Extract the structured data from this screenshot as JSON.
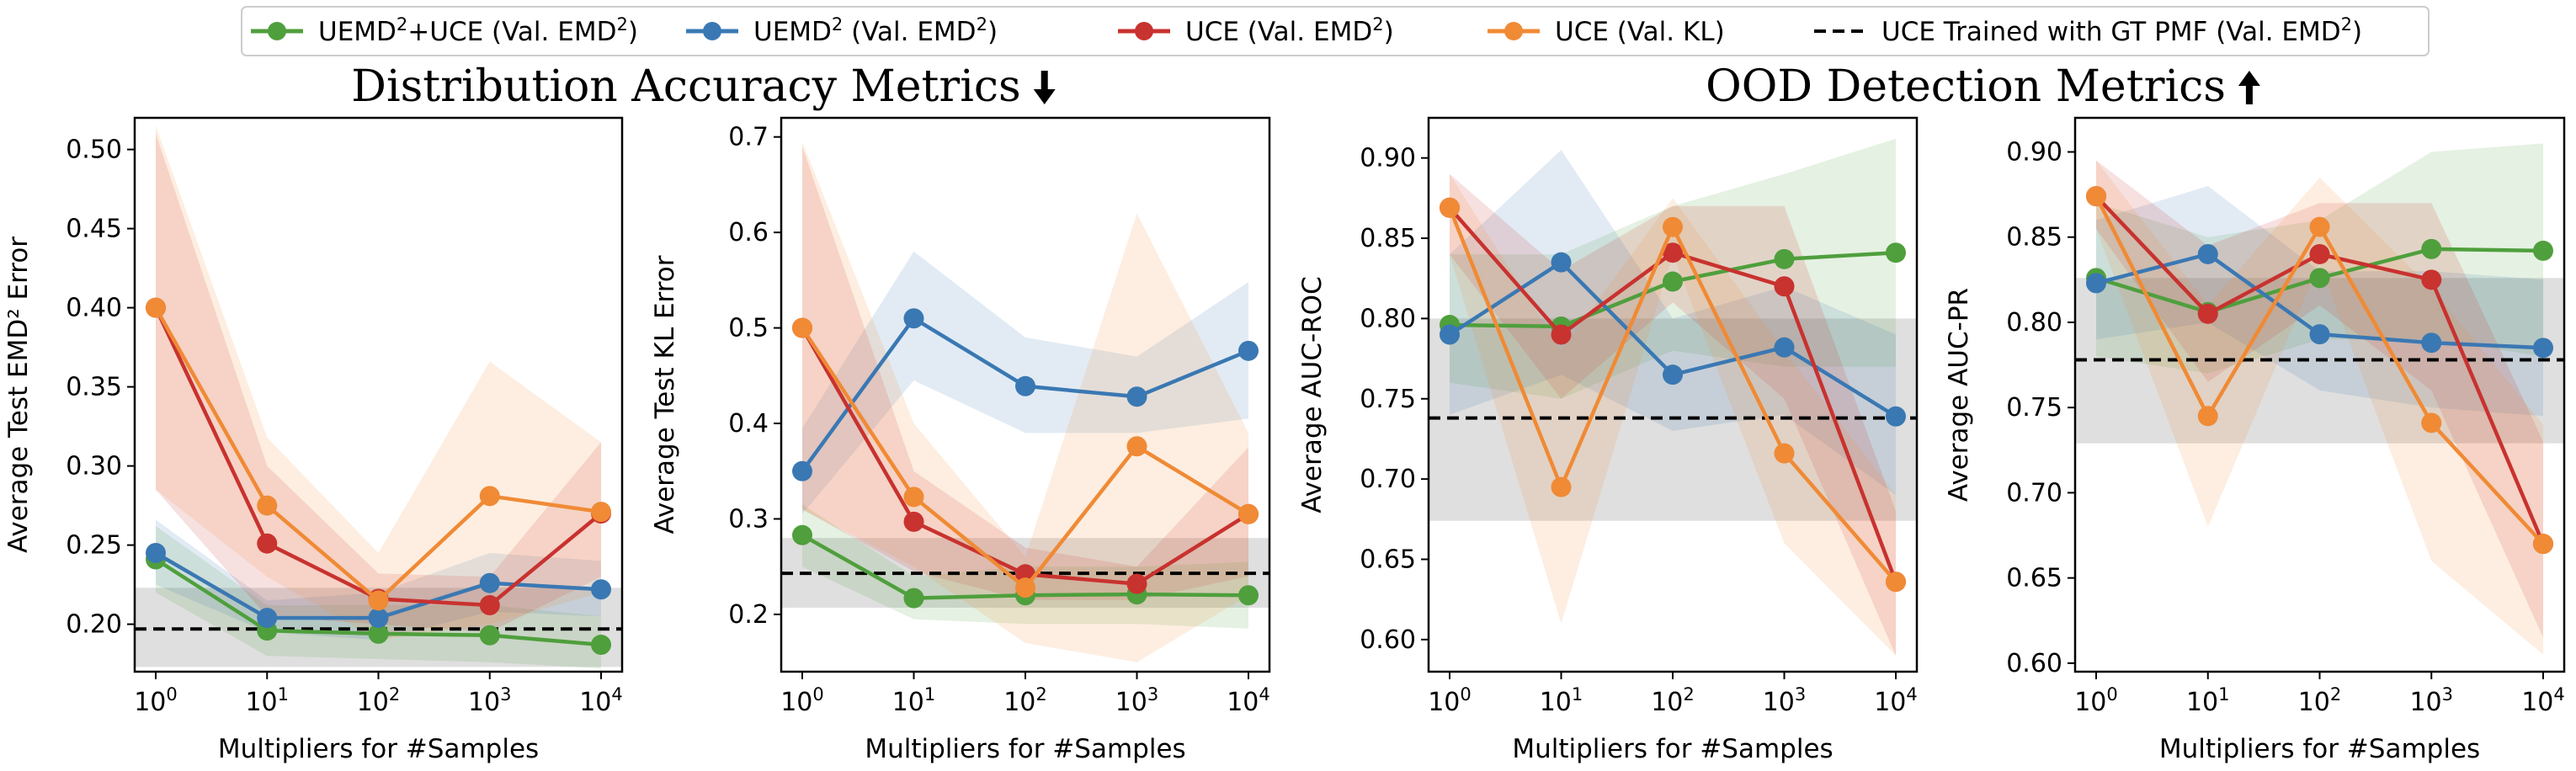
{
  "colors": {
    "green": "#4f9f3d",
    "blue": "#3a78b3",
    "red": "#c8322f",
    "orange": "#f08a35",
    "reference": "#000000",
    "reference_band": "#9b9b9b"
  },
  "legend": [
    {
      "id": "uemd_uce",
      "base": "UEMD",
      "sup": "2",
      "mid": "+UCE (Val. EMD",
      "sup2": "2",
      "tail": ")",
      "color": "#4f9f3d",
      "style": "marker"
    },
    {
      "id": "uemd",
      "base": "UEMD",
      "sup": "2",
      "mid": " (Val. EMD",
      "sup2": "2",
      "tail": ")",
      "color": "#3a78b3",
      "style": "marker"
    },
    {
      "id": "uce_emd",
      "base": "UCE (Val. EMD",
      "sup": "2",
      "mid": ")",
      "sup2": "",
      "tail": "",
      "color": "#c8322f",
      "style": "marker"
    },
    {
      "id": "uce_kl",
      "base": "UCE (Val. KL)",
      "sup": "",
      "mid": "",
      "sup2": "",
      "tail": "",
      "color": "#f08a35",
      "style": "marker"
    },
    {
      "id": "gt_pmf",
      "base": "UCE Trained with GT PMF (Val. EMD",
      "sup": "2",
      "mid": ")",
      "sup2": "",
      "tail": "",
      "color": "#000000",
      "style": "dashed"
    }
  ],
  "group_titles": [
    {
      "text": "Distribution Accuracy Metrics",
      "arrow": "down"
    },
    {
      "text": "OOD Detection Metrics",
      "arrow": "up"
    }
  ],
  "chart_data": [
    {
      "type": "line",
      "xscale": "log",
      "x": [
        1,
        10,
        100,
        1000,
        10000
      ],
      "xtick_labels": [
        {
          "base": "10",
          "exp": "0"
        },
        {
          "base": "10",
          "exp": "1"
        },
        {
          "base": "10",
          "exp": "2"
        },
        {
          "base": "10",
          "exp": "3"
        },
        {
          "base": "10",
          "exp": "4"
        }
      ],
      "xlabel": "Multipliers for #Samples",
      "ylabel": "Average Test EMD² Error",
      "ylim": [
        0.17,
        0.52
      ],
      "yticks": [
        "0.20",
        "0.25",
        "0.30",
        "0.35",
        "0.40",
        "0.45",
        "0.50"
      ],
      "ytick_values": [
        0.2,
        0.25,
        0.3,
        0.35,
        0.4,
        0.45,
        0.5
      ],
      "series": [
        {
          "name": "UEMD²+UCE (Val. EMD²)",
          "color": "#4f9f3d",
          "values": [
            0.241,
            0.196,
            0.194,
            0.193,
            0.187
          ],
          "lower": [
            0.22,
            0.18,
            0.178,
            0.176,
            0.172
          ],
          "upper": [
            0.262,
            0.212,
            0.212,
            0.212,
            0.205
          ]
        },
        {
          "name": "UEMD² (Val. EMD²)",
          "color": "#3a78b3",
          "values": [
            0.245,
            0.204,
            0.204,
            0.226,
            0.222
          ],
          "lower": [
            0.225,
            0.195,
            0.19,
            0.208,
            0.205
          ],
          "upper": [
            0.266,
            0.215,
            0.22,
            0.245,
            0.24
          ]
        },
        {
          "name": "UCE (Val. EMD²)",
          "color": "#c8322f",
          "values": [
            0.4,
            0.251,
            0.216,
            0.212,
            0.27
          ],
          "lower": [
            0.285,
            0.205,
            0.2,
            0.195,
            0.23
          ],
          "upper": [
            0.51,
            0.3,
            0.232,
            0.23,
            0.315
          ]
        },
        {
          "name": "UCE (Val. KL)",
          "color": "#f08a35",
          "values": [
            0.4,
            0.275,
            0.215,
            0.281,
            0.271
          ],
          "lower": [
            0.285,
            0.23,
            0.19,
            0.2,
            0.22
          ],
          "upper": [
            0.515,
            0.318,
            0.245,
            0.366,
            0.315
          ]
        }
      ],
      "reference": {
        "name": "UCE Trained with GT PMF (Val. EMD²)",
        "value": 0.197,
        "lower": 0.173,
        "upper": 0.223
      }
    },
    {
      "type": "line",
      "xscale": "log",
      "x": [
        1,
        10,
        100,
        1000,
        10000
      ],
      "xtick_labels": [
        {
          "base": "10",
          "exp": "0"
        },
        {
          "base": "10",
          "exp": "1"
        },
        {
          "base": "10",
          "exp": "2"
        },
        {
          "base": "10",
          "exp": "3"
        },
        {
          "base": "10",
          "exp": "4"
        }
      ],
      "xlabel": "Multipliers for #Samples",
      "ylabel": "Average Test KL Error",
      "ylim": [
        0.14,
        0.72
      ],
      "yticks": [
        "0.2",
        "0.3",
        "0.4",
        "0.5",
        "0.6",
        "0.7"
      ],
      "ytick_values": [
        0.2,
        0.3,
        0.4,
        0.5,
        0.6,
        0.7
      ],
      "series": [
        {
          "name": "UEMD²+UCE (Val. EMD²)",
          "color": "#4f9f3d",
          "values": [
            0.283,
            0.217,
            0.22,
            0.221,
            0.22
          ],
          "lower": [
            0.25,
            0.195,
            0.19,
            0.19,
            0.185
          ],
          "upper": [
            0.315,
            0.24,
            0.25,
            0.25,
            0.255
          ]
        },
        {
          "name": "UEMD² (Val. EMD²)",
          "color": "#3a78b3",
          "values": [
            0.35,
            0.51,
            0.439,
            0.428,
            0.476
          ],
          "lower": [
            0.305,
            0.445,
            0.39,
            0.39,
            0.405
          ],
          "upper": [
            0.395,
            0.58,
            0.49,
            0.47,
            0.548
          ]
        },
        {
          "name": "UCE (Val. EMD²)",
          "color": "#c8322f",
          "values": [
            0.5,
            0.297,
            0.242,
            0.232,
            0.305
          ],
          "lower": [
            0.31,
            0.245,
            0.215,
            0.215,
            0.24
          ],
          "upper": [
            0.69,
            0.35,
            0.27,
            0.25,
            0.375
          ]
        },
        {
          "name": "UCE (Val. KL)",
          "color": "#f08a35",
          "values": [
            0.5,
            0.323,
            0.228,
            0.376,
            0.305
          ],
          "lower": [
            0.31,
            0.25,
            0.17,
            0.15,
            0.22
          ],
          "upper": [
            0.695,
            0.4,
            0.26,
            0.62,
            0.39
          ]
        }
      ],
      "reference": {
        "name": "UCE Trained with GT PMF (Val. EMD²)",
        "value": 0.243,
        "lower": 0.207,
        "upper": 0.28
      }
    },
    {
      "type": "line",
      "xscale": "log",
      "x": [
        1,
        10,
        100,
        1000,
        10000
      ],
      "xtick_labels": [
        {
          "base": "10",
          "exp": "0"
        },
        {
          "base": "10",
          "exp": "1"
        },
        {
          "base": "10",
          "exp": "2"
        },
        {
          "base": "10",
          "exp": "3"
        },
        {
          "base": "10",
          "exp": "4"
        }
      ],
      "xlabel": "Multipliers for #Samples",
      "ylabel": "Average AUC-ROC",
      "ylim": [
        0.58,
        0.925
      ],
      "yticks": [
        "0.60",
        "0.65",
        "0.70",
        "0.75",
        "0.80",
        "0.85",
        "0.90"
      ],
      "ytick_values": [
        0.6,
        0.65,
        0.7,
        0.75,
        0.8,
        0.85,
        0.9
      ],
      "series": [
        {
          "name": "UEMD²+UCE (Val. EMD²)",
          "color": "#4f9f3d",
          "values": [
            0.796,
            0.795,
            0.823,
            0.837,
            0.841
          ],
          "lower": [
            0.76,
            0.75,
            0.78,
            0.77,
            0.77
          ],
          "upper": [
            0.84,
            0.84,
            0.87,
            0.89,
            0.912
          ]
        },
        {
          "name": "UEMD² (Val. EMD²)",
          "color": "#3a78b3",
          "values": [
            0.79,
            0.835,
            0.765,
            0.782,
            0.739
          ],
          "lower": [
            0.74,
            0.765,
            0.73,
            0.74,
            0.69
          ],
          "upper": [
            0.84,
            0.905,
            0.8,
            0.82,
            0.79
          ]
        },
        {
          "name": "UCE (Val. EMD²)",
          "color": "#c8322f",
          "values": [
            0.869,
            0.79,
            0.841,
            0.82,
            0.636
          ],
          "lower": [
            0.84,
            0.75,
            0.81,
            0.75,
            0.59
          ],
          "upper": [
            0.89,
            0.83,
            0.87,
            0.87,
            0.68
          ]
        },
        {
          "name": "UCE (Val. KL)",
          "color": "#f08a35",
          "values": [
            0.869,
            0.695,
            0.857,
            0.716,
            0.636
          ],
          "lower": [
            0.84,
            0.61,
            0.84,
            0.66,
            0.59
          ],
          "upper": [
            0.89,
            0.78,
            0.875,
            0.78,
            0.69
          ]
        }
      ],
      "reference": {
        "name": "UCE Trained with GT PMF (Val. EMD²)",
        "value": 0.738,
        "lower": 0.674,
        "upper": 0.8
      }
    },
    {
      "type": "line",
      "xscale": "log",
      "x": [
        1,
        10,
        100,
        1000,
        10000
      ],
      "xtick_labels": [
        {
          "base": "10",
          "exp": "0"
        },
        {
          "base": "10",
          "exp": "1"
        },
        {
          "base": "10",
          "exp": "2"
        },
        {
          "base": "10",
          "exp": "3"
        },
        {
          "base": "10",
          "exp": "4"
        }
      ],
      "xlabel": "Multipliers for #Samples",
      "ylabel": "Average AUC-PR",
      "ylim": [
        0.595,
        0.92
      ],
      "yticks": [
        "0.60",
        "0.65",
        "0.70",
        "0.75",
        "0.80",
        "0.85",
        "0.90"
      ],
      "ytick_values": [
        0.6,
        0.65,
        0.7,
        0.75,
        0.8,
        0.85,
        0.9
      ],
      "series": [
        {
          "name": "UEMD²+UCE (Val. EMD²)",
          "color": "#4f9f3d",
          "values": [
            0.826,
            0.806,
            0.826,
            0.843,
            0.842
          ],
          "lower": [
            0.78,
            0.77,
            0.79,
            0.79,
            0.78
          ],
          "upper": [
            0.87,
            0.85,
            0.86,
            0.9,
            0.905
          ]
        },
        {
          "name": "UEMD² (Val. EMD²)",
          "color": "#3a78b3",
          "values": [
            0.823,
            0.84,
            0.793,
            0.788,
            0.785
          ],
          "lower": [
            0.79,
            0.8,
            0.76,
            0.75,
            0.745
          ],
          "upper": [
            0.86,
            0.88,
            0.83,
            0.83,
            0.825
          ]
        },
        {
          "name": "UCE (Val. EMD²)",
          "color": "#c8322f",
          "values": [
            0.874,
            0.805,
            0.84,
            0.825,
            0.67
          ],
          "lower": [
            0.855,
            0.765,
            0.81,
            0.76,
            0.615
          ],
          "upper": [
            0.895,
            0.845,
            0.87,
            0.87,
            0.73
          ]
        },
        {
          "name": "UCE (Val. KL)",
          "color": "#f08a35",
          "values": [
            0.874,
            0.745,
            0.856,
            0.741,
            0.67
          ],
          "lower": [
            0.855,
            0.68,
            0.835,
            0.66,
            0.605
          ],
          "upper": [
            0.895,
            0.81,
            0.885,
            0.82,
            0.74
          ]
        }
      ],
      "reference": {
        "name": "UCE Trained with GT PMF (Val. EMD²)",
        "value": 0.778,
        "lower": 0.729,
        "upper": 0.826
      }
    }
  ]
}
